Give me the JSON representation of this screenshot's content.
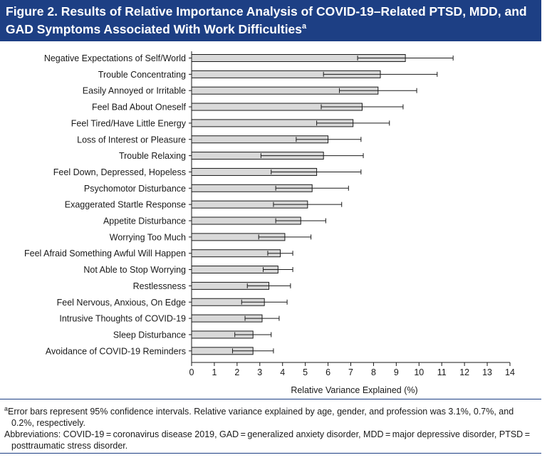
{
  "figure": {
    "title": "Figure 2. Results of Relative Importance Analysis of COVID-19–Related PTSD, MDD, and GAD Symptoms Associated With Work Difficulties",
    "title_footnote_marker": "a"
  },
  "notes": {
    "footnote_marker": "a",
    "footnote_text": "Error bars represent 95% confidence intervals. Relative variance explained by age, gender, and profession was 3.1%, 0.7%, and 0.2%, respectively.",
    "abbreviations": "Abbreviations: COVID-19 = coronavirus disease 2019, GAD = generalized anxiety disorder, MDD = major depressive disorder, PTSD = posttraumatic stress disorder."
  },
  "colors": {
    "header_bg": "#1d3f84",
    "bar_fill": "#d9d9d9",
    "bar_stroke": "#1a1a1a"
  },
  "chart_data": {
    "type": "bar",
    "orientation": "horizontal",
    "xlabel": "Relative Variance Explained (%)",
    "ylabel": "",
    "xlim": [
      0,
      14
    ],
    "xticks": [
      0,
      1,
      2,
      3,
      4,
      5,
      6,
      7,
      8,
      9,
      10,
      11,
      12,
      13,
      14
    ],
    "grid": false,
    "error_bars": "95% confidence intervals",
    "categories": [
      "Negative Expectations of Self/World",
      "Trouble Concentrating",
      "Easily Annoyed or Irritable",
      "Feel Bad About Oneself",
      "Feel Tired/Have Little Energy",
      "Loss of Interest or Pleasure",
      "Trouble Relaxing",
      "Feel Down, Depressed, Hopeless",
      "Psychomotor Disturbance",
      "Exaggerated Startle Response",
      "Appetite Disturbance",
      "Worrying Too Much",
      "Feel Afraid Something Awful Will Happen",
      "Not Able to Stop Worrying",
      "Restlessness",
      "Feel Nervous, Anxious, On Edge",
      "Intrusive Thoughts of COVID-19",
      "Sleep Disturbance",
      "Avoidance of COVID-19 Reminders"
    ],
    "values": [
      9.4,
      8.3,
      8.2,
      7.5,
      7.1,
      6.0,
      5.8,
      5.5,
      5.3,
      5.1,
      4.8,
      4.1,
      3.9,
      3.8,
      3.4,
      3.2,
      3.1,
      2.7,
      2.7
    ],
    "ci_lower": [
      7.3,
      5.8,
      6.5,
      5.7,
      5.5,
      4.6,
      3.05,
      3.5,
      3.7,
      3.6,
      3.7,
      2.95,
      3.35,
      3.15,
      2.45,
      2.2,
      2.35,
      1.9,
      1.8
    ],
    "ci_upper": [
      11.5,
      10.8,
      9.9,
      9.3,
      8.7,
      7.45,
      7.55,
      7.45,
      6.9,
      6.6,
      5.9,
      5.25,
      4.45,
      4.45,
      4.35,
      4.2,
      3.85,
      3.5,
      3.6
    ]
  }
}
